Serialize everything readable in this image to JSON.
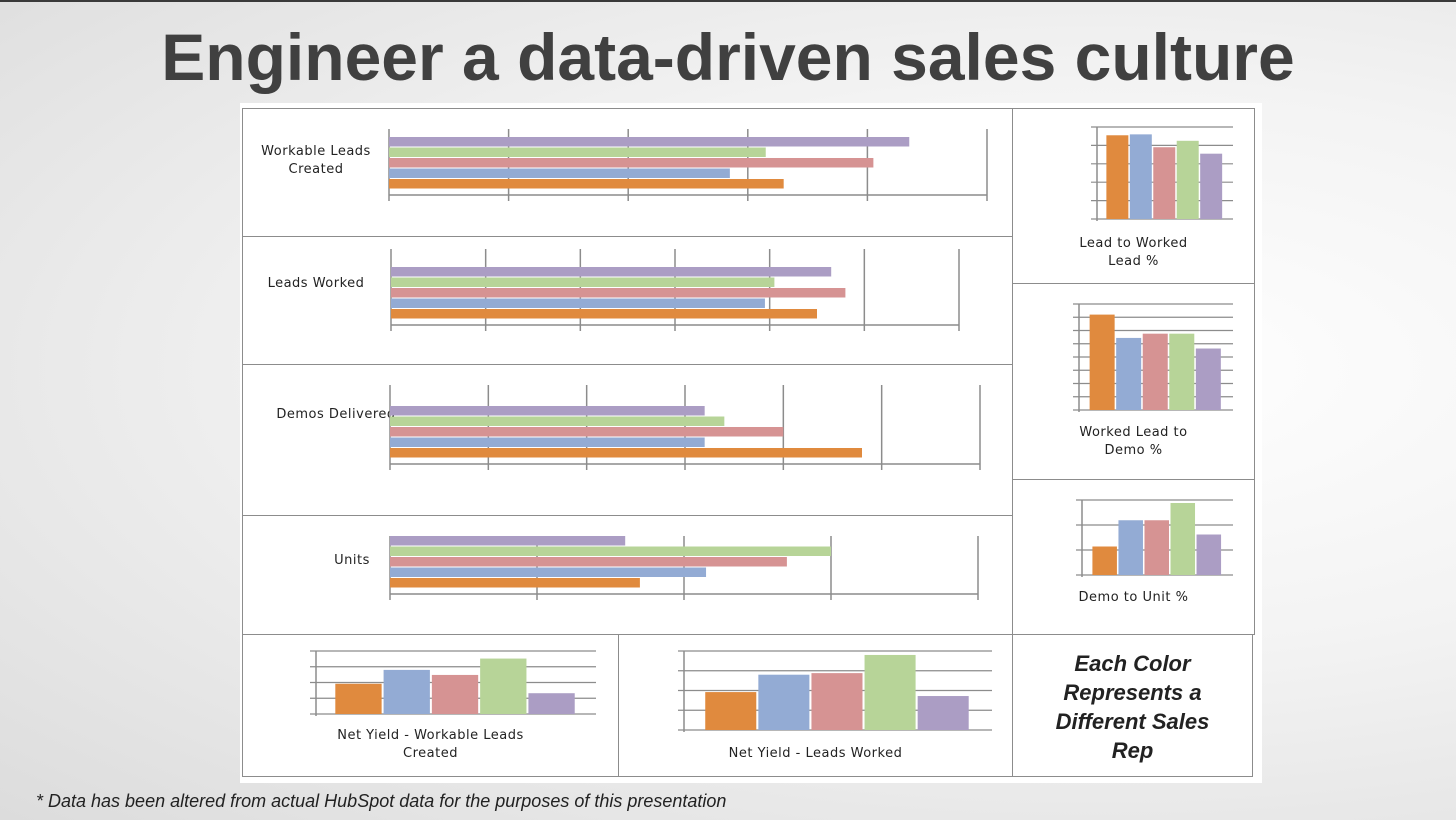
{
  "title": "Engineer a data-driven sales culture",
  "footnote": "* Data has been altered from actual HubSpot data for the purposes of this presentation",
  "legend_note": "Each Color Represents a Different Sales Rep",
  "colors": {
    "orange": "#E08A3E",
    "blue": "#93ABD4",
    "pink": "#D69393",
    "green": "#B7D498",
    "purple": "#AB9DC4"
  },
  "chart_data": [
    {
      "id": "workable-leads",
      "type": "bar",
      "orientation": "horizontal",
      "label": "Workable Leads Created",
      "xlim": [
        0,
        5
      ],
      "series": [
        {
          "color": "#AB9DC4",
          "value": 4.35
        },
        {
          "color": "#B7D498",
          "value": 3.15
        },
        {
          "color": "#D69393",
          "value": 4.05
        },
        {
          "color": "#93ABD4",
          "value": 2.85
        },
        {
          "color": "#E08A3E",
          "value": 3.3
        }
      ]
    },
    {
      "id": "leads-worked",
      "type": "bar",
      "orientation": "horizontal",
      "label": "Leads Worked",
      "xlim": [
        0,
        6
      ],
      "series": [
        {
          "color": "#AB9DC4",
          "value": 4.65
        },
        {
          "color": "#B7D498",
          "value": 4.05
        },
        {
          "color": "#D69393",
          "value": 4.8
        },
        {
          "color": "#93ABD4",
          "value": 3.95
        },
        {
          "color": "#E08A3E",
          "value": 4.5
        }
      ]
    },
    {
      "id": "demos-delivered",
      "type": "bar",
      "orientation": "horizontal",
      "label": "Demos Delivered",
      "xlim": [
        0,
        6
      ],
      "series": [
        {
          "color": "#AB9DC4",
          "value": 3.2
        },
        {
          "color": "#B7D498",
          "value": 3.4
        },
        {
          "color": "#D69393",
          "value": 4.0
        },
        {
          "color": "#93ABD4",
          "value": 3.2
        },
        {
          "color": "#E08A3E",
          "value": 4.8
        }
      ]
    },
    {
      "id": "units",
      "type": "bar",
      "orientation": "horizontal",
      "label": "Units",
      "xlim": [
        0,
        4
      ],
      "series": [
        {
          "color": "#AB9DC4",
          "value": 1.6
        },
        {
          "color": "#B7D498",
          "value": 3.0
        },
        {
          "color": "#D69393",
          "value": 2.7
        },
        {
          "color": "#93ABD4",
          "value": 2.15
        },
        {
          "color": "#E08A3E",
          "value": 1.7
        }
      ]
    },
    {
      "id": "lead-to-worked",
      "type": "bar",
      "label": "Lead to Worked Lead %",
      "ylim": [
        0,
        100
      ],
      "series": [
        {
          "color": "#E08A3E",
          "value": 91
        },
        {
          "color": "#93ABD4",
          "value": 92
        },
        {
          "color": "#D69393",
          "value": 78
        },
        {
          "color": "#B7D498",
          "value": 85
        },
        {
          "color": "#AB9DC4",
          "value": 71
        }
      ]
    },
    {
      "id": "worked-to-demo",
      "type": "bar",
      "label": "Worked Lead to Demo %",
      "ylim": [
        0,
        100
      ],
      "series": [
        {
          "color": "#E08A3E",
          "value": 90
        },
        {
          "color": "#93ABD4",
          "value": 68
        },
        {
          "color": "#D69393",
          "value": 72
        },
        {
          "color": "#B7D498",
          "value": 72
        },
        {
          "color": "#AB9DC4",
          "value": 58
        }
      ]
    },
    {
      "id": "demo-to-unit",
      "type": "bar",
      "label": "Demo to Unit %",
      "ylim": [
        0,
        100
      ],
      "series": [
        {
          "color": "#E08A3E",
          "value": 38
        },
        {
          "color": "#93ABD4",
          "value": 73
        },
        {
          "color": "#D69393",
          "value": 73
        },
        {
          "color": "#B7D498",
          "value": 96
        },
        {
          "color": "#AB9DC4",
          "value": 54
        }
      ]
    },
    {
      "id": "net-yield-workable",
      "type": "bar",
      "label": "Net Yield - Workable Leads Created",
      "ylim": [
        0,
        100
      ],
      "series": [
        {
          "color": "#E08A3E",
          "value": 48
        },
        {
          "color": "#93ABD4",
          "value": 70
        },
        {
          "color": "#D69393",
          "value": 62
        },
        {
          "color": "#B7D498",
          "value": 88
        },
        {
          "color": "#AB9DC4",
          "value": 33
        }
      ]
    },
    {
      "id": "net-yield-worked",
      "type": "bar",
      "label": "Net Yield - Leads Worked",
      "ylim": [
        0,
        100
      ],
      "series": [
        {
          "color": "#E08A3E",
          "value": 48
        },
        {
          "color": "#93ABD4",
          "value": 70
        },
        {
          "color": "#D69393",
          "value": 72
        },
        {
          "color": "#B7D498",
          "value": 95
        },
        {
          "color": "#AB9DC4",
          "value": 43
        }
      ]
    }
  ]
}
